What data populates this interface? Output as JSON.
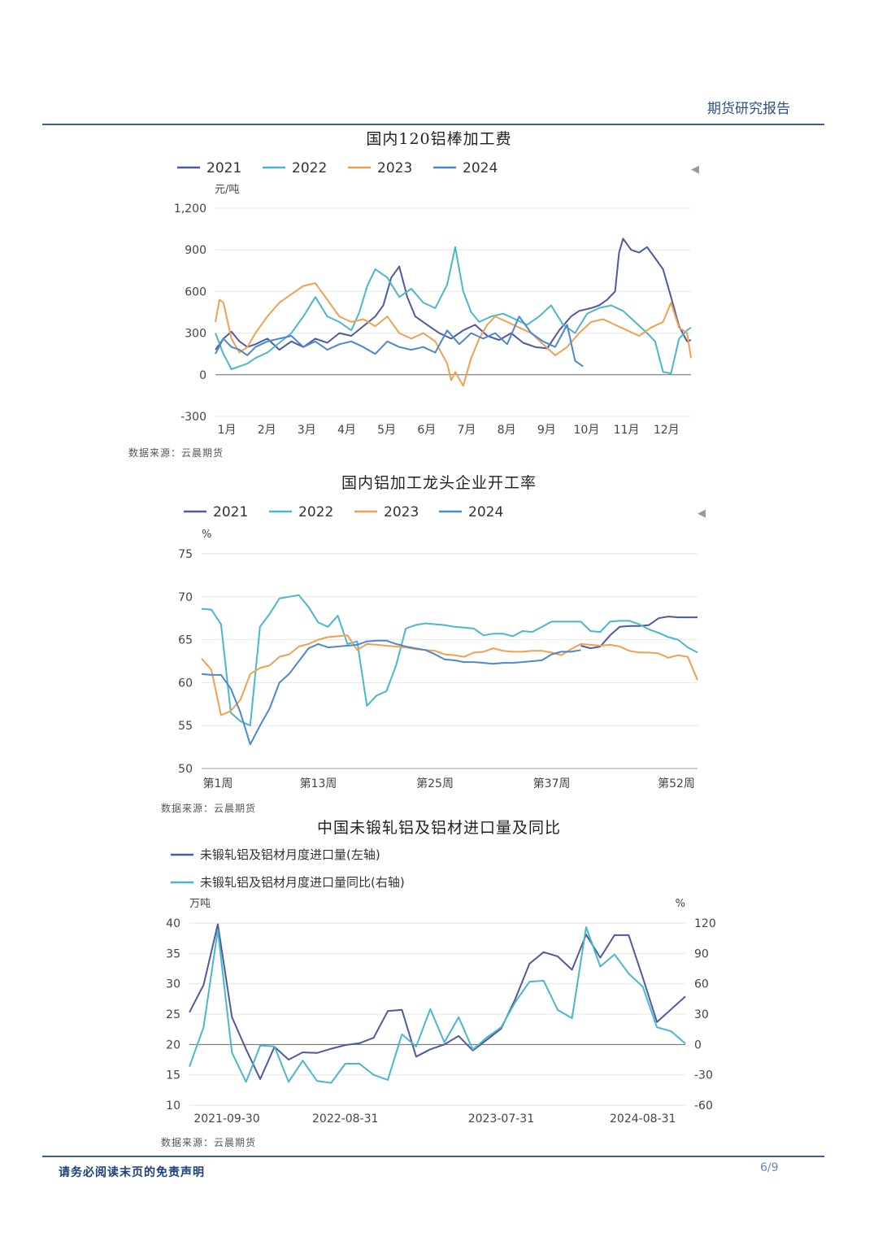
{
  "header": {
    "title": "期货研究报告",
    "footer_note": "请务必阅读末页的免责声明",
    "page": "6/9"
  },
  "sources": [
    "数据来源：云晨期货",
    "数据来源：云晨期货",
    "数据来源：云晨期货"
  ],
  "colors": {
    "2021": "#4e5a9e",
    "2022": "#4ab8cc",
    "2023": "#f0a050",
    "2024": "#4a88d0",
    "rule": "#3b5e9a"
  },
  "chart_data": [
    {
      "type": "line",
      "title": "国内120铝棒加工费",
      "unit": "元/吨",
      "ylim": [
        -300,
        1200
      ],
      "yticks": [
        "-300",
        "0",
        "300",
        "600",
        "900",
        "1,200"
      ],
      "ytick_values": [
        -300,
        0,
        300,
        600,
        900,
        1200
      ],
      "x_labels": [
        "1月",
        "2月",
        "3月",
        "4月",
        "5月",
        "6月",
        "7月",
        "8月",
        "9月",
        "10月",
        "11月",
        "12月"
      ],
      "xlim": [
        1,
        12.9
      ],
      "legend": "top",
      "series": [
        {
          "name": "2021",
          "x": [
            1.0,
            1.2,
            1.4,
            1.6,
            1.8,
            2.0,
            2.3,
            2.6,
            2.9,
            3.2,
            3.5,
            3.8,
            4.1,
            4.4,
            4.7,
            5.0,
            5.2,
            5.4,
            5.6,
            5.8,
            6.0,
            6.3,
            6.6,
            6.9,
            7.2,
            7.5,
            7.8,
            8.1,
            8.4,
            8.7,
            9.0,
            9.3,
            9.6,
            9.9,
            10.1,
            10.4,
            10.6,
            10.8,
            11.0,
            11.1,
            11.2,
            11.4,
            11.6,
            11.8,
            12.0,
            12.2,
            12.4,
            12.6,
            12.8,
            12.9
          ],
          "values": [
            180,
            260,
            310,
            240,
            200,
            220,
            260,
            180,
            240,
            200,
            260,
            230,
            300,
            280,
            350,
            420,
            500,
            700,
            780,
            560,
            420,
            360,
            300,
            260,
            320,
            360,
            280,
            250,
            300,
            230,
            200,
            190,
            320,
            420,
            460,
            480,
            500,
            540,
            600,
            880,
            980,
            900,
            880,
            920,
            840,
            760,
            560,
            350,
            240,
            250
          ]
        },
        {
          "name": "2022",
          "x": [
            1.0,
            1.2,
            1.4,
            1.6,
            1.8,
            2.0,
            2.3,
            2.6,
            2.9,
            3.2,
            3.5,
            3.8,
            4.1,
            4.4,
            4.6,
            4.8,
            5.0,
            5.3,
            5.6,
            5.9,
            6.2,
            6.5,
            6.8,
            7.0,
            7.2,
            7.4,
            7.6,
            7.9,
            8.2,
            8.5,
            8.8,
            9.1,
            9.4,
            9.7,
            10.0,
            10.3,
            10.6,
            10.9,
            11.2,
            11.5,
            11.8,
            12.0,
            12.2,
            12.4,
            12.6,
            12.8,
            12.9
          ],
          "values": [
            300,
            150,
            40,
            60,
            80,
            120,
            160,
            230,
            300,
            420,
            560,
            420,
            380,
            320,
            450,
            640,
            760,
            700,
            560,
            620,
            520,
            480,
            650,
            920,
            600,
            450,
            380,
            420,
            440,
            400,
            360,
            420,
            500,
            360,
            300,
            440,
            480,
            500,
            460,
            380,
            300,
            240,
            20,
            10,
            260,
            320,
            340
          ]
        },
        {
          "name": "2023",
          "x": [
            1.0,
            1.1,
            1.2,
            1.4,
            1.6,
            1.8,
            2.0,
            2.3,
            2.6,
            2.9,
            3.2,
            3.5,
            3.8,
            4.1,
            4.4,
            4.7,
            5.0,
            5.3,
            5.6,
            5.9,
            6.2,
            6.5,
            6.8,
            6.9,
            7.0,
            7.2,
            7.4,
            7.6,
            7.8,
            8.0,
            8.3,
            8.6,
            8.9,
            9.2,
            9.5,
            9.8,
            10.1,
            10.4,
            10.7,
            11.0,
            11.3,
            11.6,
            11.9,
            12.2,
            12.4,
            12.6,
            12.8,
            12.9
          ],
          "values": [
            380,
            540,
            520,
            260,
            160,
            200,
            300,
            420,
            520,
            580,
            640,
            660,
            540,
            420,
            380,
            400,
            350,
            420,
            300,
            260,
            300,
            240,
            80,
            -40,
            20,
            -80,
            120,
            260,
            360,
            420,
            380,
            340,
            300,
            220,
            140,
            200,
            300,
            380,
            400,
            360,
            320,
            280,
            340,
            380,
            520,
            340,
            300,
            120
          ]
        },
        {
          "name": "2024",
          "x": [
            1.0,
            1.2,
            1.4,
            1.6,
            1.8,
            2.0,
            2.3,
            2.6,
            2.9,
            3.2,
            3.5,
            3.8,
            4.1,
            4.4,
            4.7,
            5.0,
            5.3,
            5.6,
            5.9,
            6.2,
            6.5,
            6.8,
            7.1,
            7.4,
            7.7,
            8.0,
            8.3,
            8.6,
            8.9,
            9.2,
            9.5,
            9.8,
            10.0,
            10.2
          ],
          "values": [
            150,
            260,
            200,
            180,
            140,
            200,
            240,
            260,
            280,
            200,
            240,
            180,
            220,
            240,
            200,
            150,
            240,
            200,
            180,
            200,
            160,
            320,
            220,
            300,
            260,
            300,
            220,
            420,
            300,
            240,
            200,
            360,
            100,
            60
          ]
        }
      ]
    },
    {
      "type": "line",
      "title": "国内铝加工龙头企业开工率",
      "unit": "%",
      "ylim": [
        50,
        75
      ],
      "yticks": [
        "50",
        "55",
        "60",
        "65",
        "70",
        "75"
      ],
      "ytick_values": [
        50,
        55,
        60,
        65,
        70,
        75
      ],
      "x_labels": [
        "第1周",
        "第13周",
        "第25周",
        "第37周",
        "第52周"
      ],
      "x_label_weeks": [
        1,
        13,
        25,
        37,
        52
      ],
      "xlim": [
        1,
        52
      ],
      "legend": "top",
      "series": [
        {
          "name": "2021",
          "x": [
            40,
            41,
            42,
            43,
            44,
            45,
            46,
            47,
            48,
            49,
            50,
            51,
            52
          ],
          "values": [
            64.3,
            64.0,
            64.2,
            65.5,
            66.5,
            66.6,
            66.6,
            66.7,
            67.5,
            67.7,
            67.6,
            67.6,
            67.6
          ]
        },
        {
          "name": "2022",
          "x": [
            1,
            2,
            3,
            4,
            5,
            6,
            7,
            8,
            9,
            10,
            11,
            12,
            13,
            14,
            15,
            16,
            17,
            18,
            19,
            20,
            21,
            22,
            23,
            24,
            25,
            26,
            27,
            28,
            29,
            30,
            31,
            32,
            33,
            34,
            35,
            36,
            37,
            38,
            39,
            40,
            41,
            42,
            43,
            44,
            45,
            46,
            47,
            48,
            49,
            50,
            51,
            52
          ],
          "values": [
            68.6,
            68.5,
            66.8,
            56.5,
            55.5,
            55.0,
            66.5,
            68.0,
            69.8,
            70.0,
            70.2,
            68.8,
            67.0,
            66.5,
            67.8,
            64.5,
            64.8,
            57.3,
            58.5,
            59.0,
            62.0,
            66.3,
            66.7,
            66.9,
            66.8,
            66.7,
            66.5,
            66.4,
            66.3,
            65.5,
            65.7,
            65.7,
            65.4,
            66.0,
            65.9,
            66.5,
            67.1,
            67.1,
            67.1,
            67.1,
            66.0,
            65.9,
            67.1,
            67.2,
            67.2,
            66.8,
            66.2,
            65.8,
            65.3,
            65.0,
            64.1,
            63.5
          ]
        },
        {
          "name": "2023",
          "x": [
            1,
            2,
            3,
            4,
            5,
            6,
            7,
            8,
            9,
            10,
            11,
            12,
            13,
            14,
            15,
            16,
            17,
            18,
            19,
            20,
            21,
            22,
            23,
            24,
            25,
            26,
            27,
            28,
            29,
            30,
            31,
            32,
            33,
            34,
            35,
            36,
            37,
            38,
            39,
            40,
            41,
            42,
            43,
            44,
            45,
            46,
            47,
            48,
            49,
            50,
            51,
            52
          ],
          "values": [
            62.8,
            61.5,
            56.2,
            56.7,
            58.0,
            61.0,
            61.7,
            62.0,
            63.0,
            63.3,
            64.2,
            64.5,
            65.0,
            65.3,
            65.4,
            65.5,
            63.8,
            64.5,
            64.4,
            64.3,
            64.2,
            64.1,
            63.9,
            63.8,
            63.7,
            63.3,
            63.2,
            63.0,
            63.5,
            63.6,
            64.0,
            63.7,
            63.6,
            63.6,
            63.7,
            63.7,
            63.5,
            63.2,
            63.9,
            64.5,
            64.4,
            64.3,
            64.4,
            64.2,
            63.7,
            63.5,
            63.5,
            63.4,
            62.9,
            63.2,
            63.0,
            60.3
          ]
        },
        {
          "name": "2024",
          "x": [
            1,
            2,
            3,
            4,
            5,
            6,
            7,
            8,
            9,
            10,
            11,
            12,
            13,
            14,
            15,
            16,
            17,
            18,
            19,
            20,
            21,
            22,
            23,
            24,
            25,
            26,
            27,
            28,
            29,
            30,
            31,
            32,
            33,
            34,
            35,
            36,
            37,
            38,
            39,
            40
          ],
          "values": [
            61.0,
            60.9,
            60.9,
            59.3,
            56.5,
            52.8,
            55.0,
            57.0,
            60.0,
            61.0,
            62.5,
            64.0,
            64.5,
            64.1,
            64.2,
            64.3,
            64.4,
            64.8,
            64.9,
            64.9,
            64.5,
            64.2,
            64.0,
            63.8,
            63.3,
            62.7,
            62.6,
            62.4,
            62.4,
            62.3,
            62.2,
            62.3,
            62.3,
            62.4,
            62.5,
            62.6,
            63.3,
            63.6,
            63.6,
            63.8
          ]
        }
      ]
    },
    {
      "type": "line",
      "title": "中国未锻轧铝及铝材进口量及同比",
      "left_unit": "万吨",
      "right_unit": "%",
      "ylim_left": [
        10,
        40
      ],
      "ylim_right": [
        -60,
        120
      ],
      "yticks_left": [
        "10",
        "15",
        "20",
        "25",
        "30",
        "35",
        "40"
      ],
      "ytick_left_values": [
        10,
        15,
        20,
        25,
        30,
        35,
        40
      ],
      "yticks_right": [
        "-60",
        "-30",
        "0",
        "30",
        "60",
        "90",
        "120"
      ],
      "ytick_right_values": [
        -60,
        -30,
        0,
        30,
        60,
        90,
        120
      ],
      "x_labels": [
        "2021-09-30",
        "2022-08-31",
        "2023-07-31",
        "2024-08-31"
      ],
      "x_label_index": [
        0,
        11,
        22,
        32
      ],
      "xlim": [
        0,
        35
      ],
      "legend": "top-left",
      "series": [
        {
          "name": "未锻轧铝及铝材月度进口量(左轴)",
          "axis": "left",
          "values": [
            25.3,
            29.8,
            39.8,
            24.5,
            19.2,
            14.3,
            19.6,
            17.5,
            18.7,
            18.6,
            19.3,
            19.9,
            20.2,
            21.1,
            25.5,
            25.7,
            18.0,
            19.2,
            20.0,
            21.4,
            19.0,
            20.8,
            22.6,
            27.5,
            33.3,
            35.2,
            34.5,
            32.3,
            38.1,
            34.3,
            38.0,
            38.0,
            31.0,
            23.7,
            25.8,
            27.9
          ]
        },
        {
          "name": "未锻轧铝及铝材月度进口量同比(右轴)",
          "axis": "right",
          "values": [
            -22,
            17,
            113,
            -8,
            -37,
            -1,
            -2,
            -37,
            -16,
            -36,
            -38,
            -19,
            -19,
            -30,
            -35,
            10,
            -2,
            35,
            2,
            27,
            -5,
            7,
            17,
            42,
            62,
            63,
            34,
            26,
            116,
            77,
            89,
            70,
            57,
            17,
            13,
            1
          ]
        }
      ]
    }
  ]
}
